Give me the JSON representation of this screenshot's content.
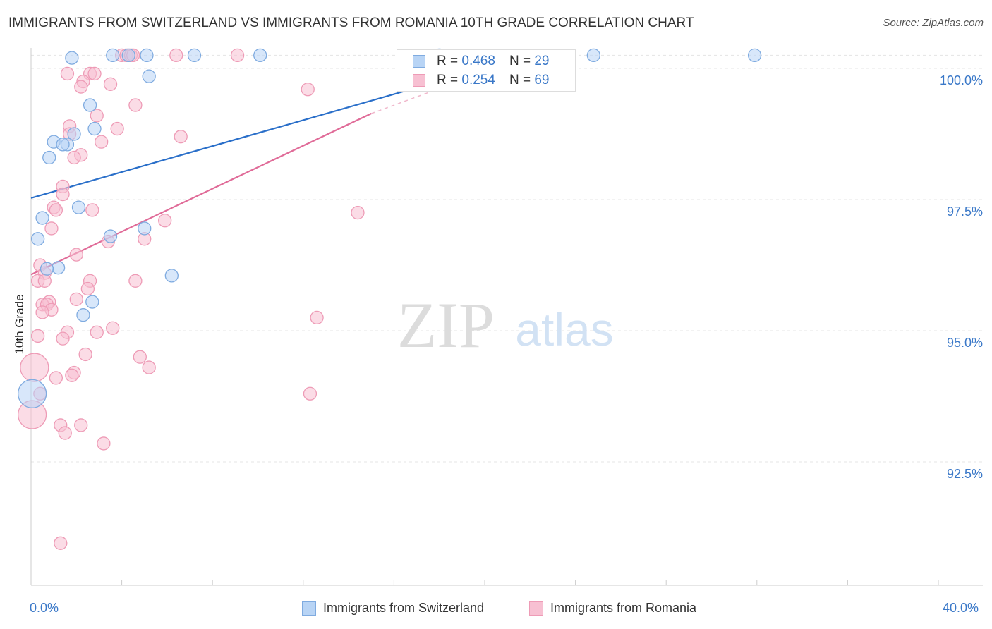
{
  "title": "IMMIGRANTS FROM SWITZERLAND VS IMMIGRANTS FROM ROMANIA 10TH GRADE CORRELATION CHART",
  "source": "Source: ZipAtlas.com",
  "watermark": {
    "zip": "ZIP",
    "atlas": "atlas"
  },
  "colors": {
    "blue_fill": "#b8d4f5",
    "blue_stroke": "#7fabe0",
    "blue_line": "#2a6fc9",
    "pink_fill": "#f7c0d2",
    "pink_stroke": "#ee9bb6",
    "pink_line": "#e06b98",
    "axis_text": "#3a78c8",
    "grid": "#e4e4e4"
  },
  "stats": {
    "row1": {
      "r_label": "R =",
      "r_value": "0.468",
      "n_label": "N =",
      "n_value": "29"
    },
    "row2": {
      "r_label": "R =",
      "r_value": "0.254",
      "n_label": "N =",
      "n_value": "69"
    }
  },
  "chart_data": {
    "type": "scatter",
    "title": "IMMIGRANTS FROM SWITZERLAND VS IMMIGRANTS FROM ROMANIA 10TH GRADE CORRELATION CHART",
    "xlabel": "",
    "ylabel": "10th Grade",
    "xlim": [
      0,
      40
    ],
    "ylim": [
      90.0,
      100.25
    ],
    "x_tick_labels": [
      {
        "value": 0,
        "label": "0.0%"
      },
      {
        "value": 40,
        "label": "40.0%"
      }
    ],
    "y_ticks": [
      {
        "value": 100.0,
        "label": "100.0%"
      },
      {
        "value": 97.5,
        "label": "97.5%"
      },
      {
        "value": 95.0,
        "label": "95.0%"
      },
      {
        "value": 92.5,
        "label": "92.5%"
      }
    ],
    "grid": true,
    "legend": [
      "Immigrants from Switzerland",
      "Immigrants from Romania"
    ],
    "series": [
      {
        "name": "Immigrants from Switzerland",
        "color": "blue",
        "trend": {
          "x": [
            0.0,
            22.0
          ],
          "y": [
            97.53,
            100.25
          ]
        },
        "points": [
          {
            "x": 1.8,
            "y": 100.2
          },
          {
            "x": 3.6,
            "y": 100.25
          },
          {
            "x": 4.3,
            "y": 100.25
          },
          {
            "x": 5.1,
            "y": 100.25
          },
          {
            "x": 7.2,
            "y": 100.25
          },
          {
            "x": 10.1,
            "y": 100.25
          },
          {
            "x": 18.0,
            "y": 100.25
          },
          {
            "x": 24.8,
            "y": 100.25
          },
          {
            "x": 31.9,
            "y": 100.25
          },
          {
            "x": 5.2,
            "y": 99.85
          },
          {
            "x": 2.6,
            "y": 99.3
          },
          {
            "x": 2.8,
            "y": 98.85
          },
          {
            "x": 1.9,
            "y": 98.75
          },
          {
            "x": 1.0,
            "y": 98.6
          },
          {
            "x": 1.6,
            "y": 98.55
          },
          {
            "x": 1.4,
            "y": 98.55
          },
          {
            "x": 0.8,
            "y": 98.3
          },
          {
            "x": 2.1,
            "y": 97.35
          },
          {
            "x": 0.5,
            "y": 97.15
          },
          {
            "x": 0.3,
            "y": 96.75
          },
          {
            "x": 3.5,
            "y": 96.8
          },
          {
            "x": 5.0,
            "y": 96.95
          },
          {
            "x": 1.2,
            "y": 96.2
          },
          {
            "x": 0.7,
            "y": 96.18
          },
          {
            "x": 6.2,
            "y": 96.05
          },
          {
            "x": 2.7,
            "y": 95.55
          },
          {
            "x": 2.3,
            "y": 95.3
          },
          {
            "x": 0.05,
            "y": 93.8,
            "big": true
          }
        ]
      },
      {
        "name": "Immigrants from Romania",
        "color": "pink",
        "trend": {
          "x": [
            0.0,
            15.0
          ],
          "y": [
            96.07,
            99.14
          ]
        },
        "trend_dashed": {
          "x": [
            15.0,
            22.0
          ],
          "y": [
            99.14,
            100.25
          ]
        },
        "points": [
          {
            "x": 4.0,
            "y": 100.25
          },
          {
            "x": 4.2,
            "y": 100.25
          },
          {
            "x": 4.4,
            "y": 100.25
          },
          {
            "x": 6.4,
            "y": 100.25
          },
          {
            "x": 9.1,
            "y": 100.25
          },
          {
            "x": 4.5,
            "y": 100.25
          },
          {
            "x": 1.6,
            "y": 99.9
          },
          {
            "x": 2.6,
            "y": 99.9
          },
          {
            "x": 2.8,
            "y": 99.9
          },
          {
            "x": 2.3,
            "y": 99.75
          },
          {
            "x": 2.2,
            "y": 99.65
          },
          {
            "x": 3.5,
            "y": 99.7
          },
          {
            "x": 12.2,
            "y": 99.6
          },
          {
            "x": 4.6,
            "y": 99.3
          },
          {
            "x": 2.9,
            "y": 99.1
          },
          {
            "x": 1.7,
            "y": 98.9
          },
          {
            "x": 3.8,
            "y": 98.85
          },
          {
            "x": 1.7,
            "y": 98.75
          },
          {
            "x": 6.6,
            "y": 98.7
          },
          {
            "x": 3.1,
            "y": 98.6
          },
          {
            "x": 2.2,
            "y": 98.35
          },
          {
            "x": 1.9,
            "y": 98.3
          },
          {
            "x": 1.4,
            "y": 97.75
          },
          {
            "x": 1.4,
            "y": 97.6
          },
          {
            "x": 1.0,
            "y": 97.35
          },
          {
            "x": 1.1,
            "y": 97.3
          },
          {
            "x": 2.7,
            "y": 97.3
          },
          {
            "x": 14.4,
            "y": 97.25
          },
          {
            "x": 5.9,
            "y": 97.1
          },
          {
            "x": 0.9,
            "y": 96.95
          },
          {
            "x": 5.0,
            "y": 96.75
          },
          {
            "x": 3.4,
            "y": 96.7
          },
          {
            "x": 2.0,
            "y": 96.45
          },
          {
            "x": 0.4,
            "y": 96.25
          },
          {
            "x": 0.6,
            "y": 96.1
          },
          {
            "x": 0.3,
            "y": 95.95
          },
          {
            "x": 0.6,
            "y": 95.95
          },
          {
            "x": 2.6,
            "y": 95.95
          },
          {
            "x": 4.6,
            "y": 95.95
          },
          {
            "x": 2.5,
            "y": 95.8
          },
          {
            "x": 2.0,
            "y": 95.6
          },
          {
            "x": 0.8,
            "y": 95.55
          },
          {
            "x": 0.5,
            "y": 95.5
          },
          {
            "x": 0.7,
            "y": 95.5
          },
          {
            "x": 0.9,
            "y": 95.4
          },
          {
            "x": 0.5,
            "y": 95.35
          },
          {
            "x": 12.6,
            "y": 95.25
          },
          {
            "x": 3.6,
            "y": 95.05
          },
          {
            "x": 2.9,
            "y": 94.97
          },
          {
            "x": 1.6,
            "y": 94.97
          },
          {
            "x": 0.3,
            "y": 94.9
          },
          {
            "x": 1.4,
            "y": 94.85
          },
          {
            "x": 2.4,
            "y": 94.55
          },
          {
            "x": 4.8,
            "y": 94.5
          },
          {
            "x": 5.2,
            "y": 94.3
          },
          {
            "x": 0.15,
            "y": 94.3,
            "big": true
          },
          {
            "x": 1.9,
            "y": 94.2
          },
          {
            "x": 1.8,
            "y": 94.15
          },
          {
            "x": 1.1,
            "y": 94.1
          },
          {
            "x": 0.4,
            "y": 93.8
          },
          {
            "x": 12.3,
            "y": 93.8
          },
          {
            "x": 0.05,
            "y": 93.4,
            "big": true
          },
          {
            "x": 1.3,
            "y": 93.2
          },
          {
            "x": 2.2,
            "y": 93.2
          },
          {
            "x": 1.5,
            "y": 93.05
          },
          {
            "x": 3.2,
            "y": 92.85
          },
          {
            "x": 1.3,
            "y": 90.95
          }
        ]
      }
    ]
  }
}
